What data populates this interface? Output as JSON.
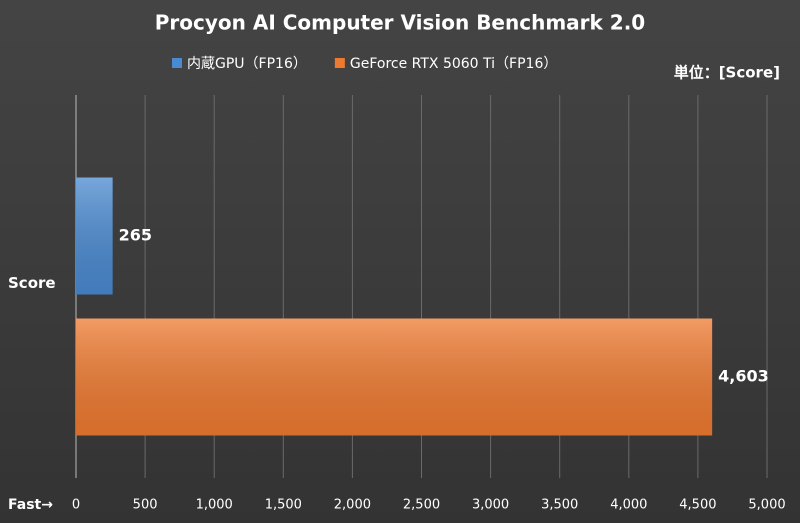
{
  "chart_data": {
    "type": "hbar",
    "title": "Procyon AI Computer Vision Benchmark 2.0",
    "unit_label": "単位：[Score]",
    "xlabel": "Fast→",
    "categories": [
      "Score"
    ],
    "series": [
      {
        "name": "内蔵GPU（FP16）",
        "color": "#4a8ad0",
        "values": [
          265
        ]
      },
      {
        "name": "GeForce RTX 5060 Ti（FP16）",
        "color": "#ee7a30",
        "values": [
          4603
        ],
        "value_labels": [
          "4,603"
        ]
      }
    ],
    "xlim": [
      0,
      5000
    ],
    "xticks": [
      0,
      500,
      {
        "value": 1000,
        "label": "1,000"
      },
      {
        "value": 1500,
        "label": "1,500"
      },
      {
        "value": 2000,
        "label": "2,000"
      },
      {
        "value": 2500,
        "label": "2,500"
      },
      {
        "value": 3000,
        "label": "3,000"
      },
      {
        "value": 3500,
        "label": "3,500"
      },
      {
        "value": 4000,
        "label": "4,000"
      },
      {
        "value": 4500,
        "label": "4,500"
      },
      {
        "value": 5000,
        "label": "5,000"
      }
    ],
    "grid": true
  }
}
